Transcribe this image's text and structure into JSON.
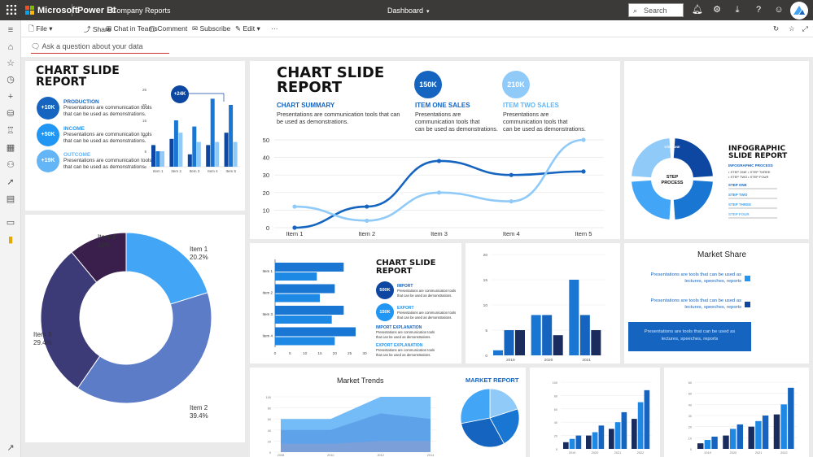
{
  "topbar": {
    "brand": "Microsoft",
    "product": "Power BI",
    "workspace": "Company Reports",
    "view": "Dashboard",
    "search_placeholder": "Search"
  },
  "actions": {
    "file": "File",
    "share": "Share",
    "teams": "Chat in Teams",
    "comment": "Comment",
    "subscribe": "Subscribe",
    "edit": "Edit",
    "more": "···"
  },
  "qa": {
    "placeholder": "Ask a question about your data"
  },
  "tile1": {
    "title1": "CHART SLIDE",
    "title2": "REPORT",
    "items": [
      {
        "badge": "+10K",
        "label": "PRODUCTION",
        "text1": "Presentations are communication tools",
        "text2": "that can be used as demonstrations."
      },
      {
        "badge": "+50K",
        "label": "INCOME",
        "text1": "Presentations are communication tools",
        "text2": "that can be used as demonstrations."
      },
      {
        "badge": "+19K",
        "label": "OUTCOME",
        "text1": "Presentations are communication tools",
        "text2": "that can be used as demonstrations."
      }
    ],
    "callout": "+24K"
  },
  "tile2": {
    "title1": "CHART SLIDE",
    "title2": "REPORT",
    "summary_label": "CHART SUMMARY",
    "summary_text1": "Presentations are communication tools that can",
    "summary_text2": "be used as demonstrations.",
    "kpi1": "150K",
    "kpi1_label": "ITEM ONE SALES",
    "kpi1_text1": "Presentations are",
    "kpi1_text2": "communication tools that",
    "kpi1_text3": "can be used as demonstrations.",
    "kpi2": "210K",
    "kpi2_label": "ITEM TWO SALES",
    "kpi2_text1": "Presentations are",
    "kpi2_text2": "communication tools that",
    "kpi2_text3": "can be used as demonstrations."
  },
  "tile3": {
    "step1": "STEP ONE",
    "step2": "STEP TWO",
    "center1": "STEP",
    "center2": "PROCESS",
    "title1": "INFOGRAPHIC",
    "title2": "SLIDE REPORT",
    "subtitle": "INFOGRAPHIC PROCESS",
    "list": [
      "STEP ONE",
      "STEP TWO",
      "STEP THREE",
      "STEP FOUR"
    ],
    "steps": [
      "STEP ONE",
      "STEP TWO",
      "STEP THREE",
      "STEP FOUR"
    ]
  },
  "tile5": {
    "title1": "CHART SLIDE",
    "title2": "REPORT",
    "kpi1": "500K",
    "kpi1_label": "IMPORT",
    "kpi2": "150K",
    "kpi2_label": "EXPORT",
    "note_text": "Presentations are communication tools",
    "note_text2": "that can be used as demonstrations.",
    "import_label": "IMPORT EXPLANATION",
    "export_label": "EXPORT EXPLANATION"
  },
  "tile6": {
    "title": "Market Share",
    "text1a": "Presentations are tools that can be used as",
    "text1b": "lectures, speeches, reports",
    "text2a": "Presentations are tools that can be used as",
    "text2b": "lectures, speeches, reports",
    "box_a": "Presentations are tools that can be used as",
    "box_b": "lectures, speeches, reports"
  },
  "tile7": {
    "title": "Market Trends"
  },
  "tile8": {
    "title": "MARKET REPORT"
  },
  "colors": {
    "dark": "#0d47a1",
    "mid": "#1976d2",
    "light": "#64b5f6",
    "navy": "#1a237e",
    "pale": "#90caf9"
  },
  "chart_data": [
    {
      "type": "bar",
      "categories": [
        "Item 1",
        "Item 2",
        "Item 3",
        "Item 4",
        "Item 5"
      ],
      "ylim": [
        0,
        25
      ],
      "yticks": [
        0,
        5,
        10,
        15,
        20,
        25
      ],
      "series": [
        {
          "values": [
            7,
            9,
            4,
            7,
            11
          ]
        },
        {
          "values": [
            5,
            15,
            13,
            22,
            20
          ]
        },
        {
          "values": [
            5,
            11,
            8,
            8,
            8
          ]
        }
      ]
    },
    {
      "type": "line",
      "categories": [
        "Item 1",
        "Item 2",
        "Item 3",
        "Item 4",
        "Item 5"
      ],
      "ylim": [
        0,
        50
      ],
      "yticks": [
        0,
        10,
        20,
        30,
        40,
        50
      ],
      "series": [
        {
          "values": [
            0,
            12,
            38,
            30,
            32
          ]
        },
        {
          "values": [
            12,
            4,
            20,
            15,
            50
          ]
        }
      ]
    },
    {
      "type": "pie",
      "labels": [
        "Item 1",
        "Item 2",
        "Item 3",
        "Item 4"
      ],
      "values": [
        20.2,
        39.4,
        29.4,
        11
      ],
      "display": [
        "20.2%",
        "39.4%",
        "29.4%",
        "11%"
      ]
    },
    {
      "type": "bar",
      "orientation": "horizontal",
      "categories": [
        "Item 1",
        "Item 2",
        "Item 3",
        "Item 4"
      ],
      "xlim": [
        0,
        30
      ],
      "xticks": [
        0,
        5,
        10,
        15,
        20,
        25,
        30
      ],
      "series": [
        {
          "values": [
            23,
            20,
            23,
            27
          ]
        },
        {
          "values": [
            14,
            15,
            19,
            20
          ]
        }
      ]
    },
    {
      "type": "bar",
      "categories": [
        "2019",
        "2020",
        "2021"
      ],
      "ylim": [
        0,
        20
      ],
      "yticks": [
        0,
        5,
        10,
        15,
        20
      ],
      "series": [
        {
          "values": [
            1,
            8,
            15
          ]
        },
        {
          "values": [
            5,
            8,
            8
          ]
        },
        {
          "values": [
            5,
            4,
            5
          ]
        }
      ]
    },
    {
      "type": "area",
      "categories": [
        "2008",
        "2010",
        "2012",
        "2014"
      ],
      "yticks": [
        "100",
        "80",
        "60",
        "40",
        "20",
        "0"
      ],
      "series": [
        {
          "values": [
            60,
            60,
            100,
            100
          ]
        },
        {
          "values": [
            40,
            40,
            70,
            60
          ]
        },
        {
          "values": [
            15,
            15,
            20,
            20
          ]
        }
      ]
    },
    {
      "type": "pie",
      "values": [
        20,
        22,
        30,
        28
      ]
    },
    {
      "type": "bar",
      "categories": [
        "2019",
        "2020",
        "2021",
        "2022"
      ],
      "yticks": [
        "100",
        "80",
        "60",
        "40",
        "20",
        "0"
      ],
      "series": [
        {
          "values": [
            10,
            20,
            30,
            45
          ]
        },
        {
          "values": [
            15,
            25,
            40,
            70
          ]
        },
        {
          "values": [
            20,
            35,
            55,
            88
          ]
        }
      ]
    },
    {
      "type": "bar",
      "categories": [
        "2019",
        "2020",
        "2021",
        "2022"
      ],
      "yticks": [
        "60",
        "50",
        "40",
        "30",
        "20",
        "10",
        "0"
      ],
      "series": [
        {
          "values": [
            5,
            12,
            20,
            31
          ]
        },
        {
          "values": [
            8,
            18,
            25,
            40
          ]
        },
        {
          "values": [
            11,
            22,
            30,
            55
          ]
        }
      ]
    }
  ]
}
